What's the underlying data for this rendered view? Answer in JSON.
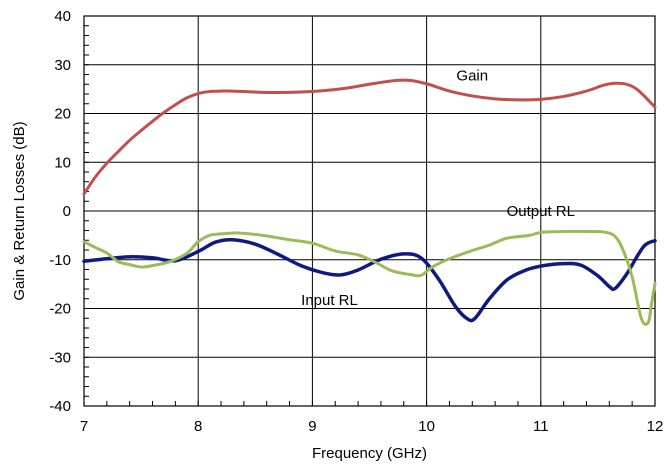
{
  "chart_data": {
    "type": "line",
    "title": "",
    "xlabel": "Frequency (GHz)",
    "ylabel": "Gain & Return Losses (dB)",
    "xlim": [
      7,
      12
    ],
    "ylim": [
      -40,
      40
    ],
    "xticks": [
      "7",
      "8",
      "9",
      "10",
      "11",
      "12"
    ],
    "yticks": [
      "-40",
      "-30",
      "-20",
      "-10",
      "0",
      "10",
      "20",
      "30",
      "40"
    ],
    "grid": true,
    "annotations": [
      {
        "text": "Gain",
        "x": 10.4,
        "y": 26.8
      },
      {
        "text": "Output RL",
        "x": 11.0,
        "y": -1.0
      },
      {
        "text": "Input RL",
        "x": 9.15,
        "y": -19.3
      }
    ],
    "series": [
      {
        "name": "Gain",
        "color": "#c0504d",
        "x": [
          7.0,
          7.1,
          7.2,
          7.3,
          7.4,
          7.5,
          7.6,
          7.7,
          7.8,
          7.9,
          8.0,
          8.1,
          8.2,
          8.3,
          8.5,
          8.7,
          8.9,
          9.1,
          9.3,
          9.5,
          9.7,
          9.85,
          10.0,
          10.2,
          10.4,
          10.6,
          10.8,
          11.0,
          11.2,
          11.4,
          11.55,
          11.65,
          11.75,
          11.85,
          12.0
        ],
        "values": [
          3.5,
          7.0,
          9.8,
          12.2,
          14.5,
          16.5,
          18.4,
          20.2,
          21.8,
          23.2,
          24.1,
          24.5,
          24.6,
          24.6,
          24.4,
          24.3,
          24.4,
          24.7,
          25.2,
          26.0,
          26.7,
          26.8,
          26.1,
          24.6,
          23.6,
          23.0,
          22.8,
          22.9,
          23.5,
          24.6,
          25.8,
          26.2,
          26.0,
          24.8,
          21.3
        ]
      },
      {
        "name": "Input RL",
        "color": "#0e1a80",
        "x": [
          7.0,
          7.2,
          7.4,
          7.6,
          7.8,
          8.0,
          8.15,
          8.3,
          8.5,
          8.7,
          8.9,
          9.1,
          9.25,
          9.4,
          9.6,
          9.8,
          9.95,
          10.1,
          10.25,
          10.35,
          10.42,
          10.55,
          10.7,
          10.85,
          11.0,
          11.2,
          11.35,
          11.5,
          11.6,
          11.65,
          11.75,
          11.9,
          12.0
        ],
        "values": [
          -10.3,
          -9.8,
          -9.4,
          -9.6,
          -10.2,
          -8.3,
          -6.4,
          -5.9,
          -6.8,
          -8.9,
          -11.2,
          -12.7,
          -13.1,
          -12.1,
          -9.9,
          -8.8,
          -9.6,
          -13.8,
          -19.5,
          -22.0,
          -22.1,
          -18.0,
          -14.2,
          -12.3,
          -11.3,
          -10.8,
          -11.1,
          -13.3,
          -15.5,
          -15.9,
          -13.0,
          -7.3,
          -6.1
        ]
      },
      {
        "name": "Output RL",
        "color": "#9bbb59",
        "x": [
          7.0,
          7.1,
          7.2,
          7.3,
          7.4,
          7.5,
          7.6,
          7.75,
          7.9,
          8.0,
          8.1,
          8.2,
          8.35,
          8.5,
          8.65,
          8.8,
          9.0,
          9.2,
          9.4,
          9.55,
          9.7,
          9.85,
          9.95,
          10.05,
          10.2,
          10.4,
          10.55,
          10.7,
          10.9,
          11.0,
          11.2,
          11.4,
          11.55,
          11.65,
          11.72,
          11.8,
          11.88,
          11.94,
          11.97,
          12.0
        ],
        "values": [
          -6.3,
          -7.5,
          -8.6,
          -10.4,
          -11.0,
          -11.5,
          -11.2,
          -10.4,
          -8.7,
          -6.3,
          -5.0,
          -4.7,
          -4.5,
          -4.8,
          -5.3,
          -5.9,
          -6.6,
          -8.2,
          -9.0,
          -10.5,
          -12.3,
          -13.0,
          -13.2,
          -11.5,
          -9.8,
          -8.1,
          -7.0,
          -5.6,
          -5.0,
          -4.4,
          -4.2,
          -4.2,
          -4.3,
          -5.2,
          -8.0,
          -13.5,
          -22.0,
          -22.9,
          -19.0,
          -14.8
        ]
      }
    ]
  }
}
